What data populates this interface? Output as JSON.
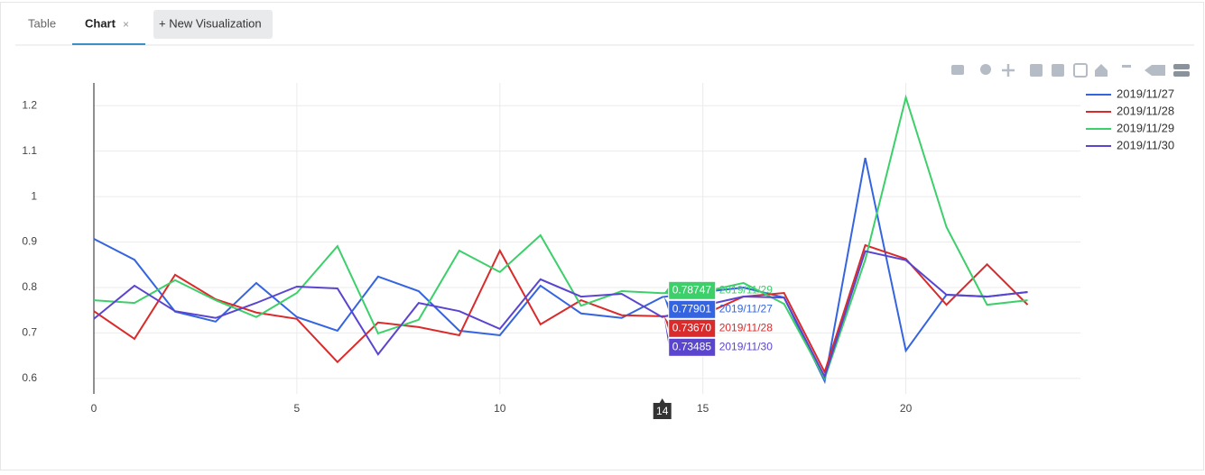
{
  "tabs": [
    "Table",
    "Chart",
    "+ New Visualization"
  ],
  "active_tab": 1,
  "chart_data": {
    "type": "line",
    "x": [
      0,
      1,
      2,
      3,
      4,
      5,
      6,
      7,
      8,
      9,
      10,
      11,
      12,
      13,
      14,
      15,
      16,
      17,
      18,
      19,
      20,
      21,
      22,
      23
    ],
    "series": [
      {
        "name": "2019/11/27",
        "color": "#3564e0",
        "values": [
          0.907,
          0.861,
          0.747,
          0.725,
          0.81,
          0.735,
          0.705,
          0.824,
          0.792,
          0.705,
          0.695,
          0.804,
          0.743,
          0.733,
          0.77901,
          0.79,
          0.8,
          0.778,
          0.594,
          1.085,
          0.661,
          0.784,
          0.78,
          0.79
        ]
      },
      {
        "name": "2019/11/28",
        "color": "#d92b2b",
        "values": [
          0.748,
          0.687,
          0.828,
          0.774,
          0.745,
          0.731,
          0.636,
          0.723,
          0.713,
          0.695,
          0.881,
          0.719,
          0.772,
          0.739,
          0.7367,
          0.74,
          0.78,
          0.788,
          0.614,
          0.893,
          0.863,
          0.762,
          0.851,
          0.762
        ]
      },
      {
        "name": "2019/11/29",
        "color": "#3ccf6a",
        "values": [
          0.772,
          0.766,
          0.816,
          0.772,
          0.735,
          0.788,
          0.891,
          0.699,
          0.729,
          0.881,
          0.834,
          0.915,
          0.76,
          0.792,
          0.78747,
          0.79,
          0.81,
          0.764,
          0.6,
          0.861,
          1.218,
          0.933,
          0.762,
          0.772
        ]
      },
      {
        "name": "2019/11/30",
        "color": "#5a45cf",
        "values": [
          0.731,
          0.804,
          0.748,
          0.733,
          0.766,
          0.802,
          0.798,
          0.653,
          0.766,
          0.748,
          0.709,
          0.818,
          0.78,
          0.786,
          0.73485,
          0.76,
          0.78,
          0.778,
          0.604,
          0.88,
          0.86,
          0.784,
          0.78,
          0.79
        ]
      }
    ],
    "xlim": [
      0,
      24.3
    ],
    "ylim": [
      0.566,
      1.25
    ],
    "xticks": [
      0,
      5,
      10,
      15,
      20
    ],
    "yticks": [
      0.6,
      0.7,
      0.8,
      0.9,
      1,
      1.1,
      1.2
    ],
    "grid": true,
    "legend": "right",
    "hover": {
      "x": 14,
      "labels": [
        "0.77901",
        "0.73670",
        "0.78747",
        "0.73485"
      ]
    }
  }
}
